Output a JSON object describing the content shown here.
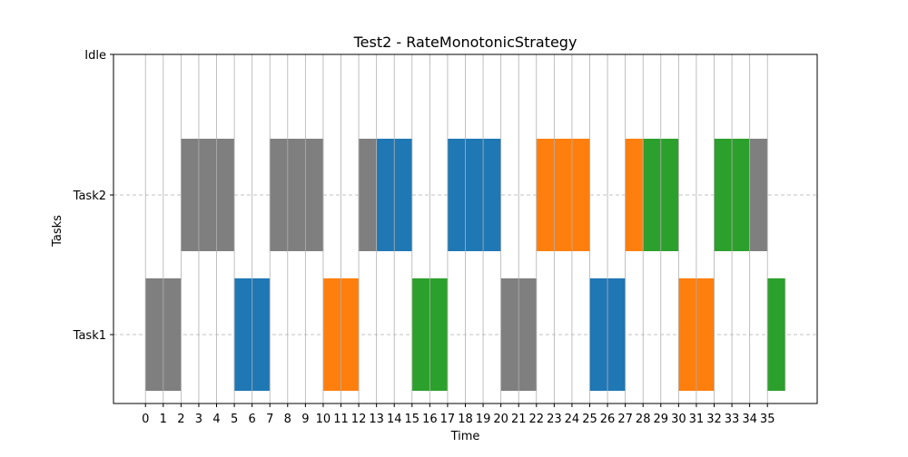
{
  "chart_data": {
    "type": "gantt",
    "title": "Test2 - RateMonotonicStrategy",
    "xlabel": "Time",
    "ylabel": "Tasks",
    "y_categories": [
      "Task1",
      "Task2",
      "Idle"
    ],
    "x_ticks": [
      0,
      1,
      2,
      3,
      4,
      5,
      6,
      7,
      8,
      9,
      10,
      11,
      12,
      13,
      14,
      15,
      16,
      17,
      18,
      19,
      20,
      21,
      22,
      23,
      24,
      25,
      26,
      27,
      28,
      29,
      30,
      31,
      32,
      33,
      34,
      35
    ],
    "xlim": [
      -1.8,
      37.8
    ],
    "grid": {
      "x": true,
      "y": true,
      "y_style": "dashed"
    },
    "colors": {
      "gray": "#7f7f7f",
      "blue": "#1f77b4",
      "orange": "#ff7f0e",
      "green": "#2ca02c",
      "gridline": "#b0b0b0"
    },
    "segments": [
      {
        "task": "Task1",
        "start": 0,
        "end": 2,
        "color": "gray"
      },
      {
        "task": "Task2",
        "start": 2,
        "end": 5,
        "color": "gray"
      },
      {
        "task": "Task1",
        "start": 5,
        "end": 7,
        "color": "blue"
      },
      {
        "task": "Task2",
        "start": 7,
        "end": 10,
        "color": "gray"
      },
      {
        "task": "Task1",
        "start": 10,
        "end": 12,
        "color": "orange"
      },
      {
        "task": "Task2",
        "start": 12,
        "end": 13,
        "color": "gray"
      },
      {
        "task": "Task2",
        "start": 13,
        "end": 15,
        "color": "blue"
      },
      {
        "task": "Task1",
        "start": 15,
        "end": 17,
        "color": "green"
      },
      {
        "task": "Task2",
        "start": 17,
        "end": 20,
        "color": "blue"
      },
      {
        "task": "Task1",
        "start": 20,
        "end": 22,
        "color": "gray"
      },
      {
        "task": "Task2",
        "start": 22,
        "end": 25,
        "color": "orange"
      },
      {
        "task": "Task1",
        "start": 25,
        "end": 27,
        "color": "blue"
      },
      {
        "task": "Task2",
        "start": 27,
        "end": 28,
        "color": "orange"
      },
      {
        "task": "Task2",
        "start": 28,
        "end": 30,
        "color": "green"
      },
      {
        "task": "Task1",
        "start": 30,
        "end": 32,
        "color": "orange"
      },
      {
        "task": "Task2",
        "start": 32,
        "end": 34,
        "color": "green"
      },
      {
        "task": "Task2",
        "start": 34,
        "end": 35,
        "color": "gray"
      },
      {
        "task": "Task1",
        "start": 35,
        "end": 36,
        "color": "green"
      }
    ]
  }
}
